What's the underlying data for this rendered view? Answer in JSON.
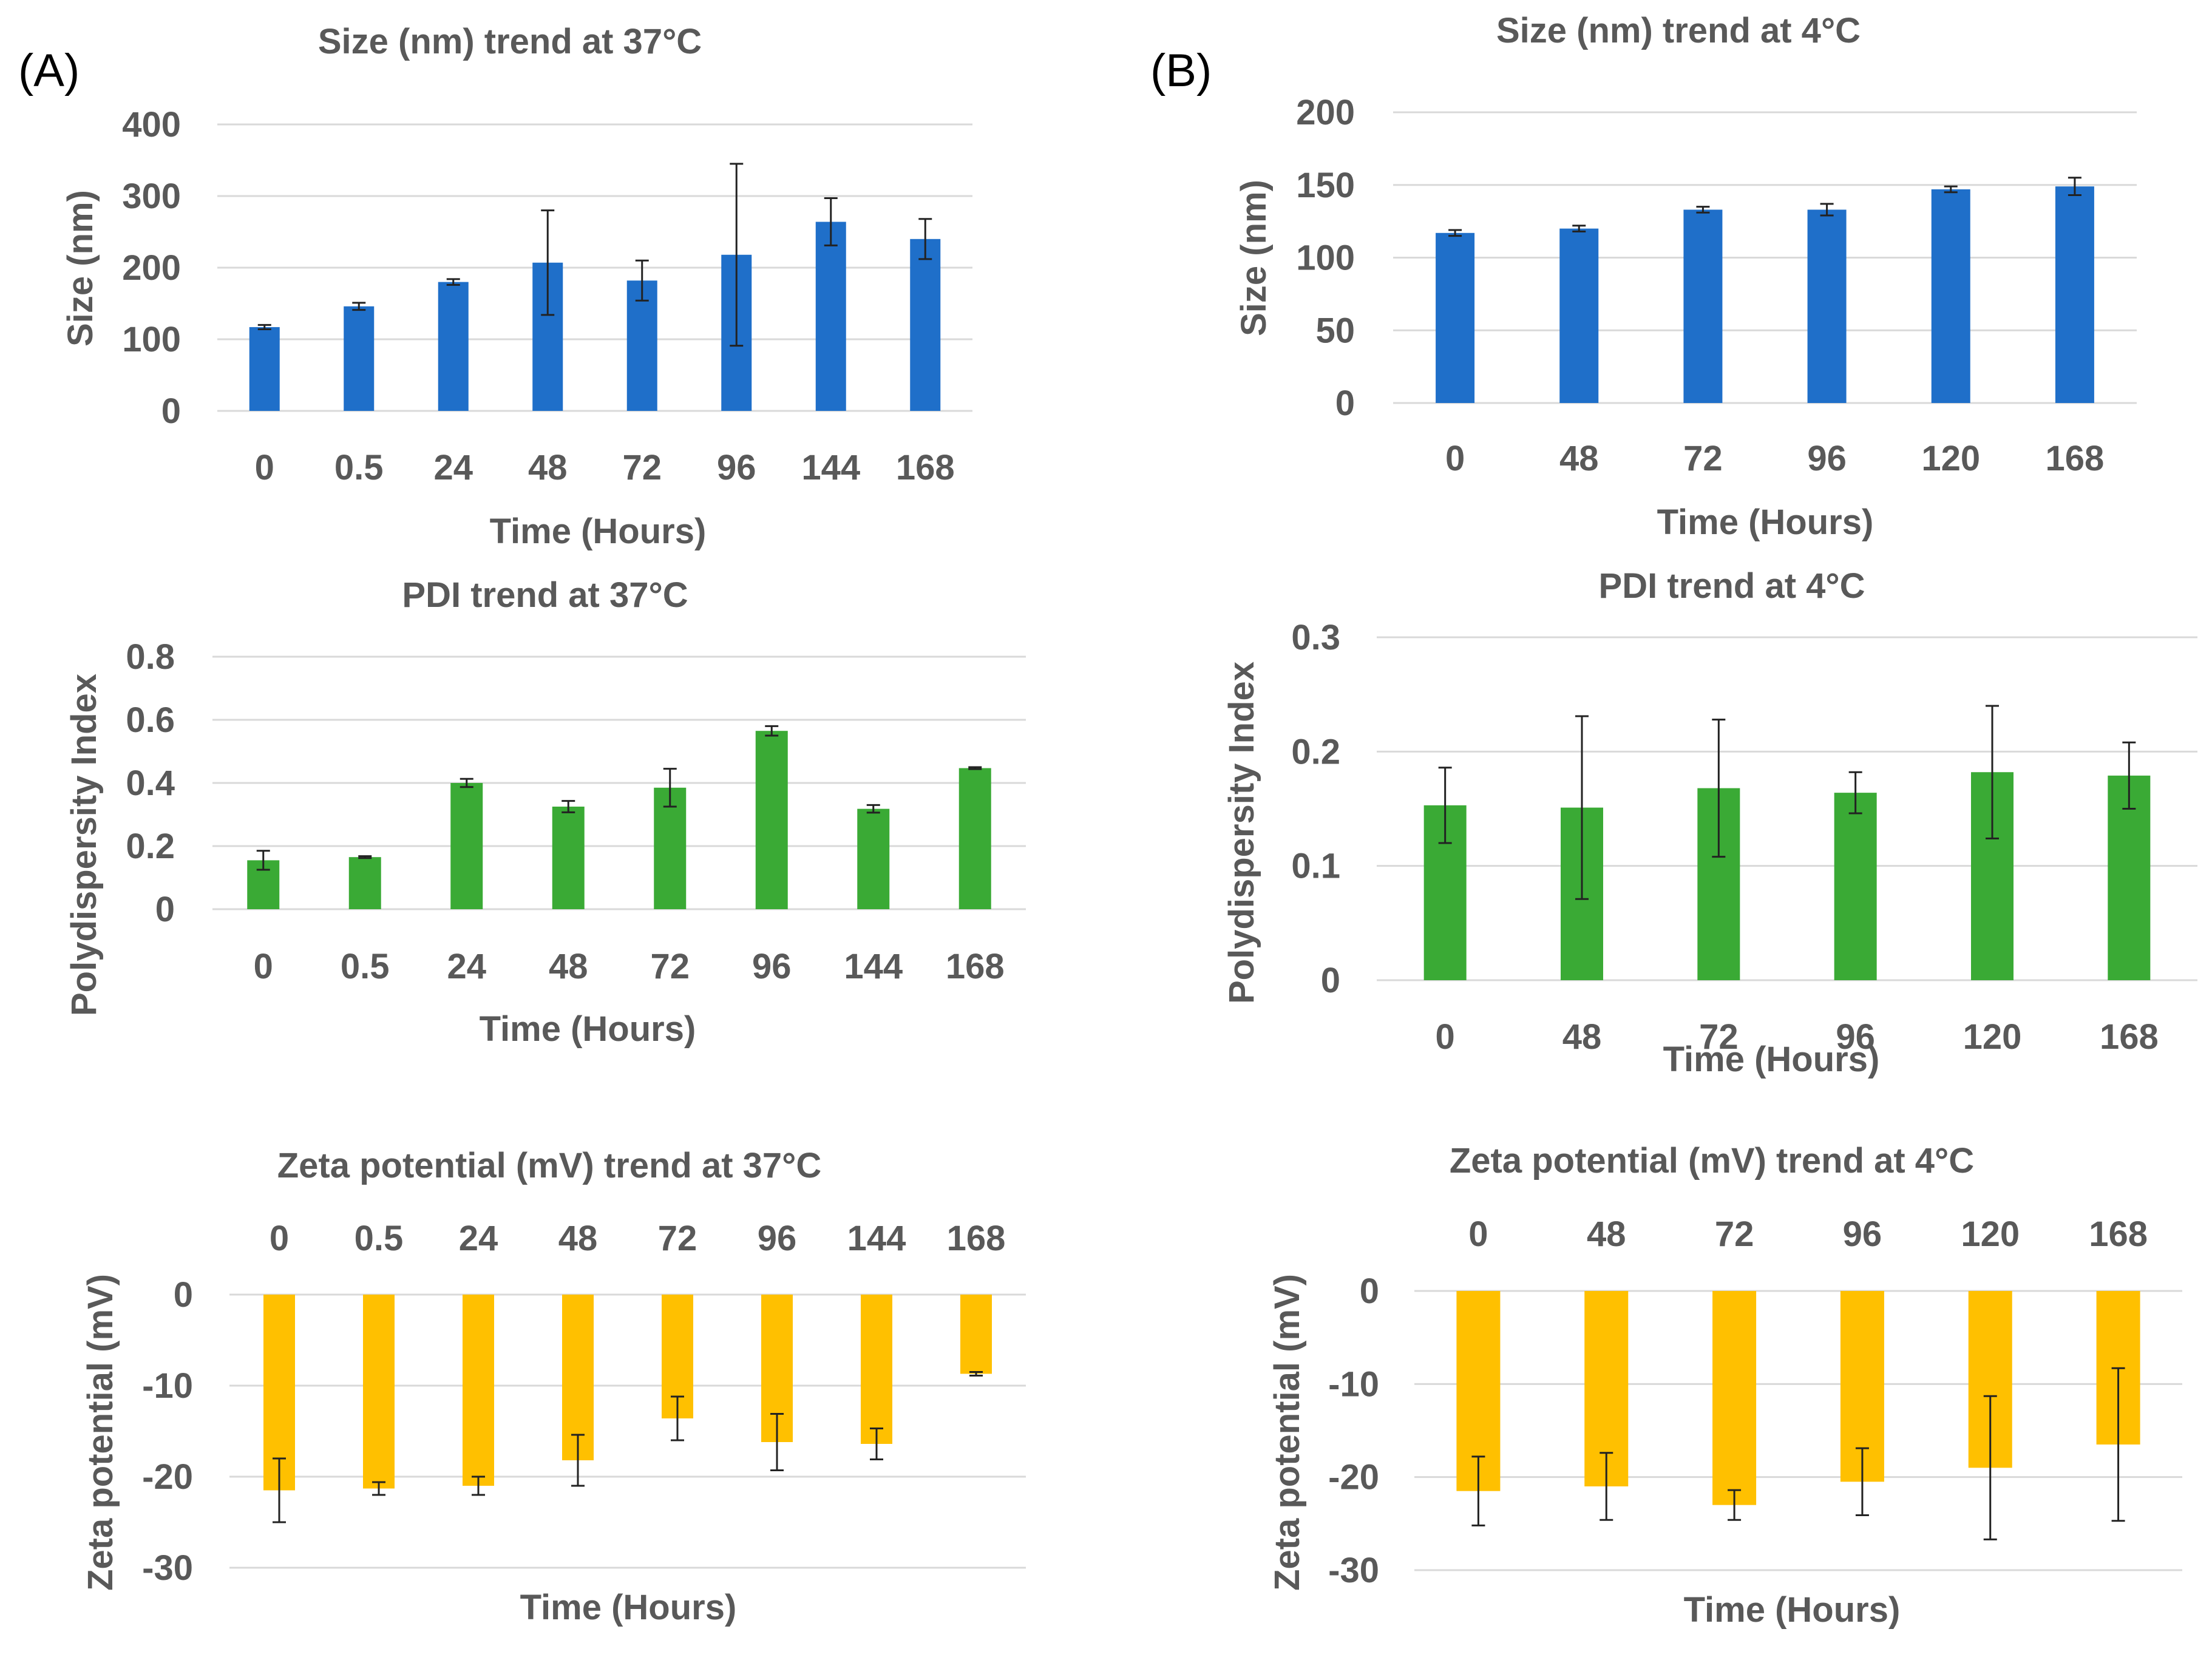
{
  "panels": {
    "a": "(A)",
    "b": "(B)"
  },
  "colors": {
    "size": "#1f6fc9",
    "pdi": "#3aaa35",
    "zeta": "#ffc000"
  },
  "chart_data": [
    {
      "type": "bar",
      "title": "Size (nm) trend at 37°C",
      "xlabel": "Time (Hours)",
      "ylabel": "Size (nm)",
      "categories": [
        "0",
        "0.5",
        "24",
        "48",
        "72",
        "96",
        "144",
        "168"
      ],
      "values": [
        117,
        146,
        180,
        207,
        182,
        218,
        264,
        240
      ],
      "errors": [
        3,
        5,
        4,
        73,
        28,
        127,
        33,
        28
      ],
      "ylim": [
        0,
        400
      ],
      "yticks": [
        "0",
        "100",
        "200",
        "300",
        "400"
      ],
      "color": "#1f6fc9",
      "xaxis_position": "bottom"
    },
    {
      "type": "bar",
      "title": "Size (nm) trend at 4°C",
      "xlabel": "Time (Hours)",
      "ylabel": "Size (nm)",
      "categories": [
        "0",
        "48",
        "72",
        "96",
        "120",
        "168"
      ],
      "values": [
        117,
        120,
        133,
        133,
        147,
        149
      ],
      "errors": [
        2,
        2,
        2,
        4,
        2,
        6
      ],
      "ylim": [
        0,
        200
      ],
      "yticks": [
        "0",
        "50",
        "100",
        "150",
        "200"
      ],
      "color": "#1f6fc9",
      "xaxis_position": "bottom"
    },
    {
      "type": "bar",
      "title": "PDI trend at 37°C",
      "xlabel": "Time (Hours)",
      "ylabel": "Polydispersity Index",
      "categories": [
        "0",
        "0.5",
        "24",
        "48",
        "72",
        "96",
        "144",
        "168"
      ],
      "values": [
        0.155,
        0.165,
        0.4,
        0.325,
        0.385,
        0.565,
        0.318,
        0.447
      ],
      "errors": [
        0.03,
        0.003,
        0.013,
        0.018,
        0.06,
        0.015,
        0.012,
        0.003
      ],
      "ylim": [
        0,
        0.8
      ],
      "yticks": [
        "0",
        "0.2",
        "0.4",
        "0.6",
        "0.8"
      ],
      "color": "#3aaa35",
      "xaxis_position": "bottom"
    },
    {
      "type": "bar",
      "title": "PDI trend at 4°C",
      "xlabel": "Time (Hours)",
      "ylabel": "Polydispersity Index",
      "categories": [
        "0",
        "48",
        "72",
        "96",
        "120",
        "168"
      ],
      "values": [
        0.153,
        0.151,
        0.168,
        0.164,
        0.182,
        0.179
      ],
      "errors": [
        0.033,
        0.08,
        0.06,
        0.018,
        0.058,
        0.029
      ],
      "ylim": [
        0,
        0.3
      ],
      "yticks": [
        "0",
        "0.1",
        "0.2",
        "0.3"
      ],
      "color": "#3aaa35",
      "xaxis_position": "bottom"
    },
    {
      "type": "bar",
      "title": "Zeta potential (mV) trend at 37°C",
      "xlabel": "Time (Hours)",
      "ylabel": "Zeta potential (mV)",
      "categories": [
        "0",
        "0.5",
        "24",
        "48",
        "72",
        "96",
        "144",
        "168"
      ],
      "values": [
        -21.5,
        -21.3,
        -21.0,
        -18.2,
        -13.6,
        -16.2,
        -16.4,
        -8.7
      ],
      "errors": [
        3.5,
        0.7,
        1.0,
        2.8,
        2.4,
        3.1,
        1.7,
        0.2
      ],
      "ylim": [
        -30,
        0
      ],
      "yticks": [
        "-30",
        "-20",
        "-10",
        "0"
      ],
      "color": "#ffc000",
      "xaxis_position": "top"
    },
    {
      "type": "bar",
      "title": "Zeta potential (mV) trend at 4°C",
      "xlabel": "Time (Hours)",
      "ylabel": "Zeta potential (mV)",
      "categories": [
        "0",
        "48",
        "72",
        "96",
        "120",
        "168"
      ],
      "values": [
        -21.5,
        -21.0,
        -23.0,
        -20.5,
        -19.0,
        -16.5
      ],
      "errors": [
        3.7,
        3.6,
        1.6,
        3.6,
        7.7,
        8.2
      ],
      "ylim": [
        -30,
        0
      ],
      "yticks": [
        "-30",
        "-20",
        "-10",
        "0"
      ],
      "color": "#ffc000",
      "xaxis_position": "top"
    }
  ]
}
